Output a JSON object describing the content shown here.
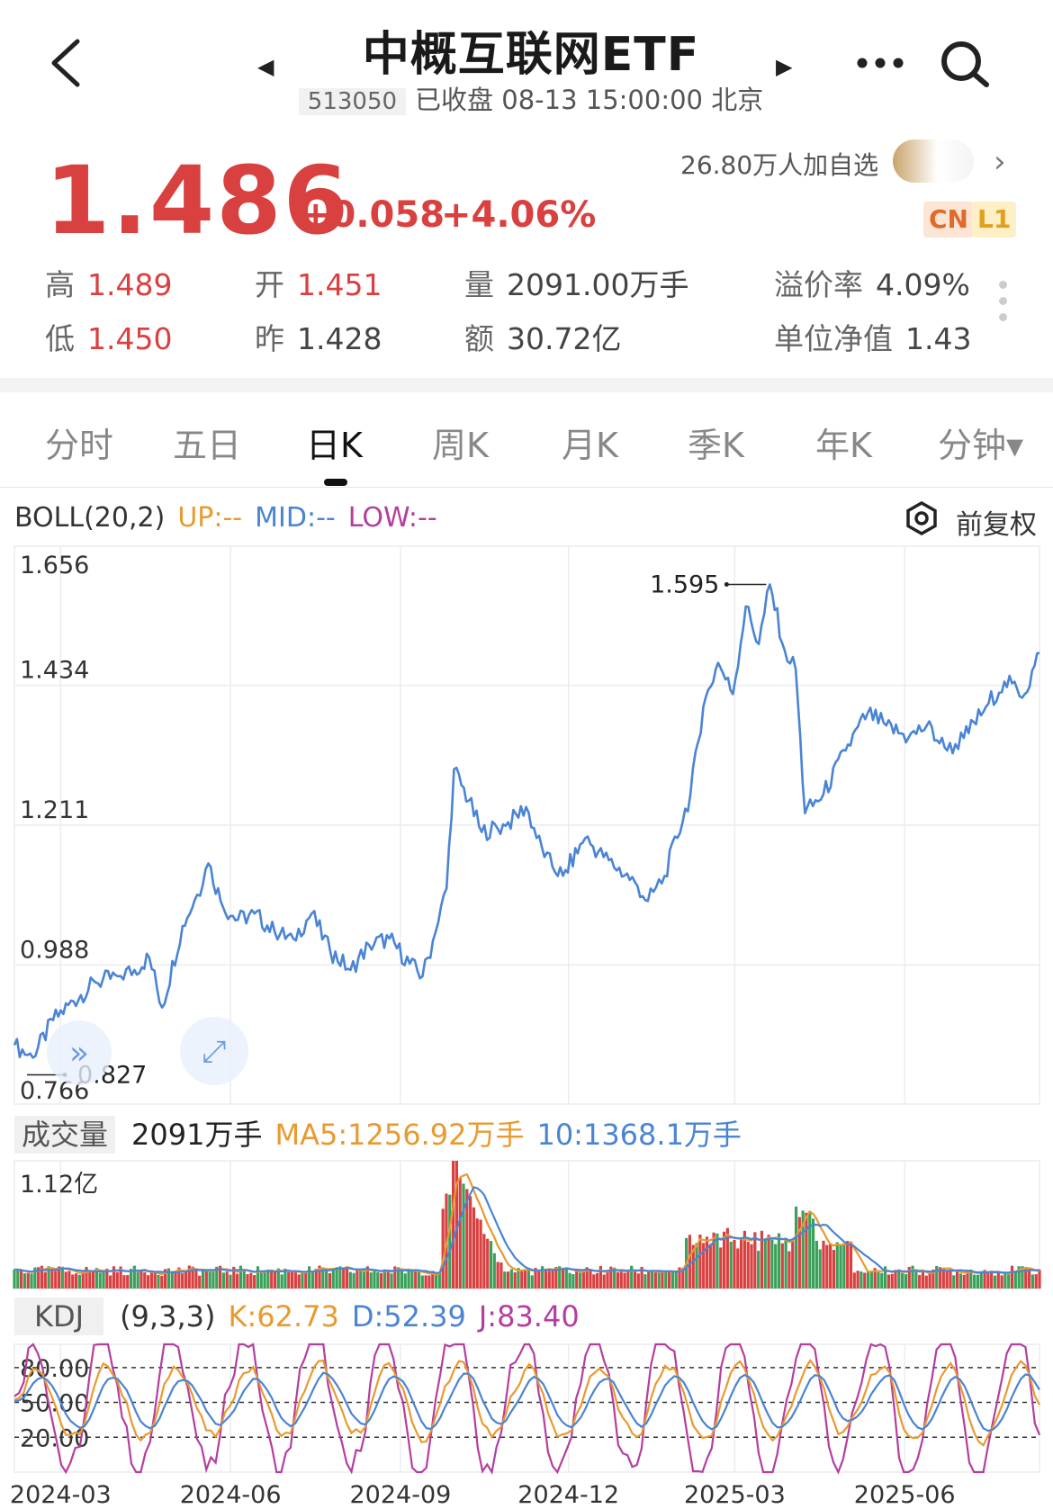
{
  "header": {
    "title": "中概互联网ETF",
    "code": "513050",
    "status": "已收盘 08-13 15:00:00 北京",
    "follow_text": "26.80万人加自选",
    "badge_cn": "CN",
    "badge_l1": "L1"
  },
  "quote": {
    "price": "1.486",
    "change": "+0.058",
    "change_pct": "+4.06%",
    "stats": {
      "high_label": "高",
      "high": "1.489",
      "open_label": "开",
      "open": "1.451",
      "volume_label": "量",
      "volume": "2091.00万手",
      "premium_label": "溢价率",
      "premium": "4.09%",
      "low_label": "低",
      "low": "1.450",
      "prev_label": "昨",
      "prev": "1.428",
      "amount_label": "额",
      "amount": "30.72亿",
      "nav_label": "单位净值",
      "nav": "1.43"
    }
  },
  "tabs": [
    "分时",
    "五日",
    "日K",
    "周K",
    "月K",
    "季K",
    "年K",
    "分钟▾"
  ],
  "active_tab": "日K",
  "boll": {
    "label": "BOLL(20,2)",
    "up": "UP:--",
    "mid": "MID:--",
    "low": "LOW:--",
    "adjust": "前复权"
  },
  "volume_panel": {
    "tag": "成交量",
    "current": "2091万手",
    "ma5": "MA5:1256.92万手",
    "ma10": "10:1368.1万手",
    "y_label": "1.12亿"
  },
  "kdj_panel": {
    "tag": "KDJ",
    "params": "(9,3,3)",
    "k": "K:62.73",
    "d": "D:52.39",
    "j": "J:83.40",
    "levels": [
      "80.00",
      "50.00",
      "20.00"
    ]
  },
  "colors": {
    "up": "#d94040",
    "down": "#3aa05a",
    "line": "#4a84d4",
    "ma5": "#e89a30",
    "ma10": "#4a84d4",
    "kdj_j": "#b43ea0"
  },
  "chart_data": {
    "type": "line",
    "title": "",
    "ylim": [
      0.766,
      1.656
    ],
    "y_ticks": [
      "1.656",
      "1.434",
      "1.211",
      "0.988",
      "0.766"
    ],
    "x_ticks": [
      "2024-03",
      "2024-06",
      "2024-09",
      "2024-12",
      "2025-03",
      "2025-06"
    ],
    "annotations": [
      {
        "label": "1.595",
        "type": "max"
      },
      {
        "label": "0.827",
        "type": "min"
      }
    ],
    "series": [
      {
        "name": "日K",
        "points": [
          [
            "2024-02-05",
            0.86
          ],
          [
            "2024-02-15",
            0.84
          ],
          [
            "2024-02-26",
            0.9
          ],
          [
            "2024-03-08",
            0.93
          ],
          [
            "2024-03-20",
            0.96
          ],
          [
            "2024-04-01",
            0.97
          ],
          [
            "2024-04-10",
            0.98
          ],
          [
            "2024-04-18",
            1.0
          ],
          [
            "2024-04-25",
            0.92
          ],
          [
            "2024-05-06",
            1.05
          ],
          [
            "2024-05-14",
            1.1
          ],
          [
            "2024-05-20",
            1.15
          ],
          [
            "2024-05-28",
            1.08
          ],
          [
            "2024-06-05",
            1.06
          ],
          [
            "2024-06-14",
            1.07
          ],
          [
            "2024-06-25",
            1.04
          ],
          [
            "2024-07-05",
            1.03
          ],
          [
            "2024-07-15",
            1.07
          ],
          [
            "2024-07-25",
            1.01
          ],
          [
            "2024-08-05",
            0.98
          ],
          [
            "2024-08-15",
            1.02
          ],
          [
            "2024-08-26",
            1.03
          ],
          [
            "2024-09-06",
            0.99
          ],
          [
            "2024-09-13",
            0.97
          ],
          [
            "2024-09-20",
            1.04
          ],
          [
            "2024-09-26",
            1.11
          ],
          [
            "2024-09-30",
            1.3
          ],
          [
            "2024-10-08",
            1.25
          ],
          [
            "2024-10-15",
            1.2
          ],
          [
            "2024-10-28",
            1.21
          ],
          [
            "2024-11-08",
            1.24
          ],
          [
            "2024-11-18",
            1.16
          ],
          [
            "2024-11-28",
            1.13
          ],
          [
            "2024-12-10",
            1.19
          ],
          [
            "2024-12-20",
            1.16
          ],
          [
            "2025-01-06",
            1.12
          ],
          [
            "2025-01-13",
            1.09
          ],
          [
            "2025-01-22",
            1.13
          ],
          [
            "2025-02-05",
            1.26
          ],
          [
            "2025-02-12",
            1.4
          ],
          [
            "2025-02-20",
            1.47
          ],
          [
            "2025-02-28",
            1.42
          ],
          [
            "2025-03-07",
            1.56
          ],
          [
            "2025-03-14",
            1.5
          ],
          [
            "2025-03-20",
            1.595
          ],
          [
            "2025-03-28",
            1.49
          ],
          [
            "2025-04-03",
            1.46
          ],
          [
            "2025-04-08",
            1.23
          ],
          [
            "2025-04-18",
            1.26
          ],
          [
            "2025-04-30",
            1.33
          ],
          [
            "2025-05-12",
            1.39
          ],
          [
            "2025-05-22",
            1.37
          ],
          [
            "2025-06-03",
            1.35
          ],
          [
            "2025-06-13",
            1.37
          ],
          [
            "2025-06-24",
            1.33
          ],
          [
            "2025-07-03",
            1.35
          ],
          [
            "2025-07-15",
            1.4
          ],
          [
            "2025-07-25",
            1.44
          ],
          [
            "2025-08-05",
            1.42
          ],
          [
            "2025-08-13",
            1.486
          ]
        ]
      }
    ]
  }
}
